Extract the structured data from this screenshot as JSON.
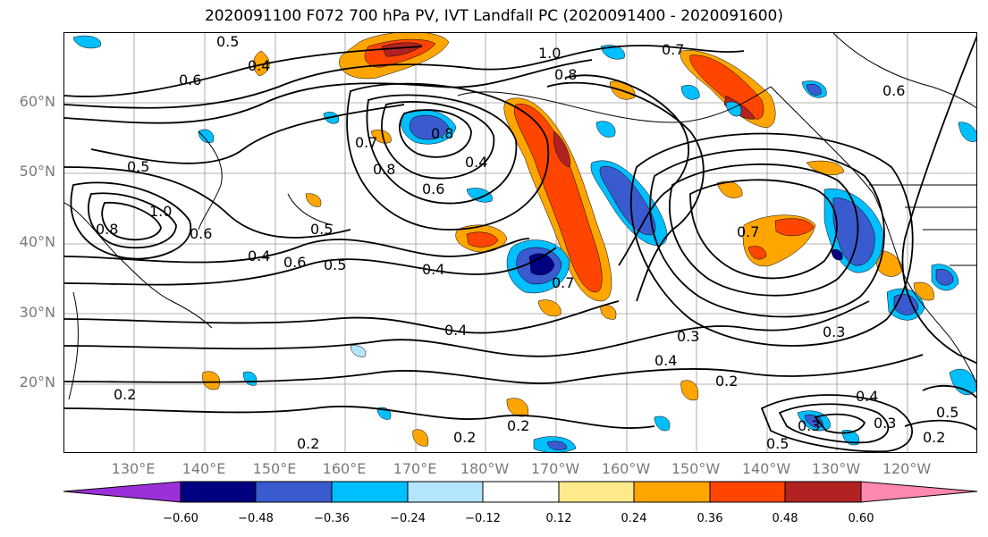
{
  "title": "2020091100 F072 700 hPa PV, IVT Landfall PC (2020091400 - 2020091600)",
  "map": {
    "lon_labels": [
      "130°E",
      "140°E",
      "150°E",
      "160°E",
      "170°E",
      "180°W",
      "170°W",
      "160°W",
      "150°W",
      "140°W",
      "130°W",
      "120°W"
    ],
    "lat_labels": [
      "60°N",
      "50°N",
      "40°N",
      "30°N",
      "20°N"
    ],
    "contour_labels": [
      "1.0",
      "0.7",
      "0.8",
      "0.6",
      "0.5",
      "0.4",
      "0.4",
      "0.8",
      "0.7",
      "0.8",
      "0.6",
      "0.5",
      "1.0",
      "0.8",
      "0.6",
      "0.5",
      "0.6",
      "0.5",
      "0.4",
      "0.7",
      "0.7",
      "0.4",
      "0.3",
      "0.3",
      "0.4",
      "0.2",
      "0.2",
      "0.3",
      "0.4",
      "0.5",
      "0.3",
      "0.2",
      "0.5",
      "0.2",
      "0.2",
      "0.2",
      "0.6",
      "0.4"
    ],
    "colors": {
      "neg_extreme": "#9b30d9",
      "neg_060": "#000080",
      "neg_048": "#3a5bcf",
      "neg_036": "#00bfff",
      "neg_024": "#b3e5fc",
      "neutral": "#ffffff",
      "pos_012": "#ffe98a",
      "pos_024": "#ffa500",
      "pos_036": "#ff4500",
      "pos_048": "#b22222",
      "pos_extreme": "#ff88b0"
    }
  },
  "colorbar": {
    "ticks": [
      "−0.60",
      "−0.48",
      "−0.36",
      "−0.24",
      "−0.12",
      "0.12",
      "0.24",
      "0.36",
      "0.48",
      "0.60"
    ]
  }
}
